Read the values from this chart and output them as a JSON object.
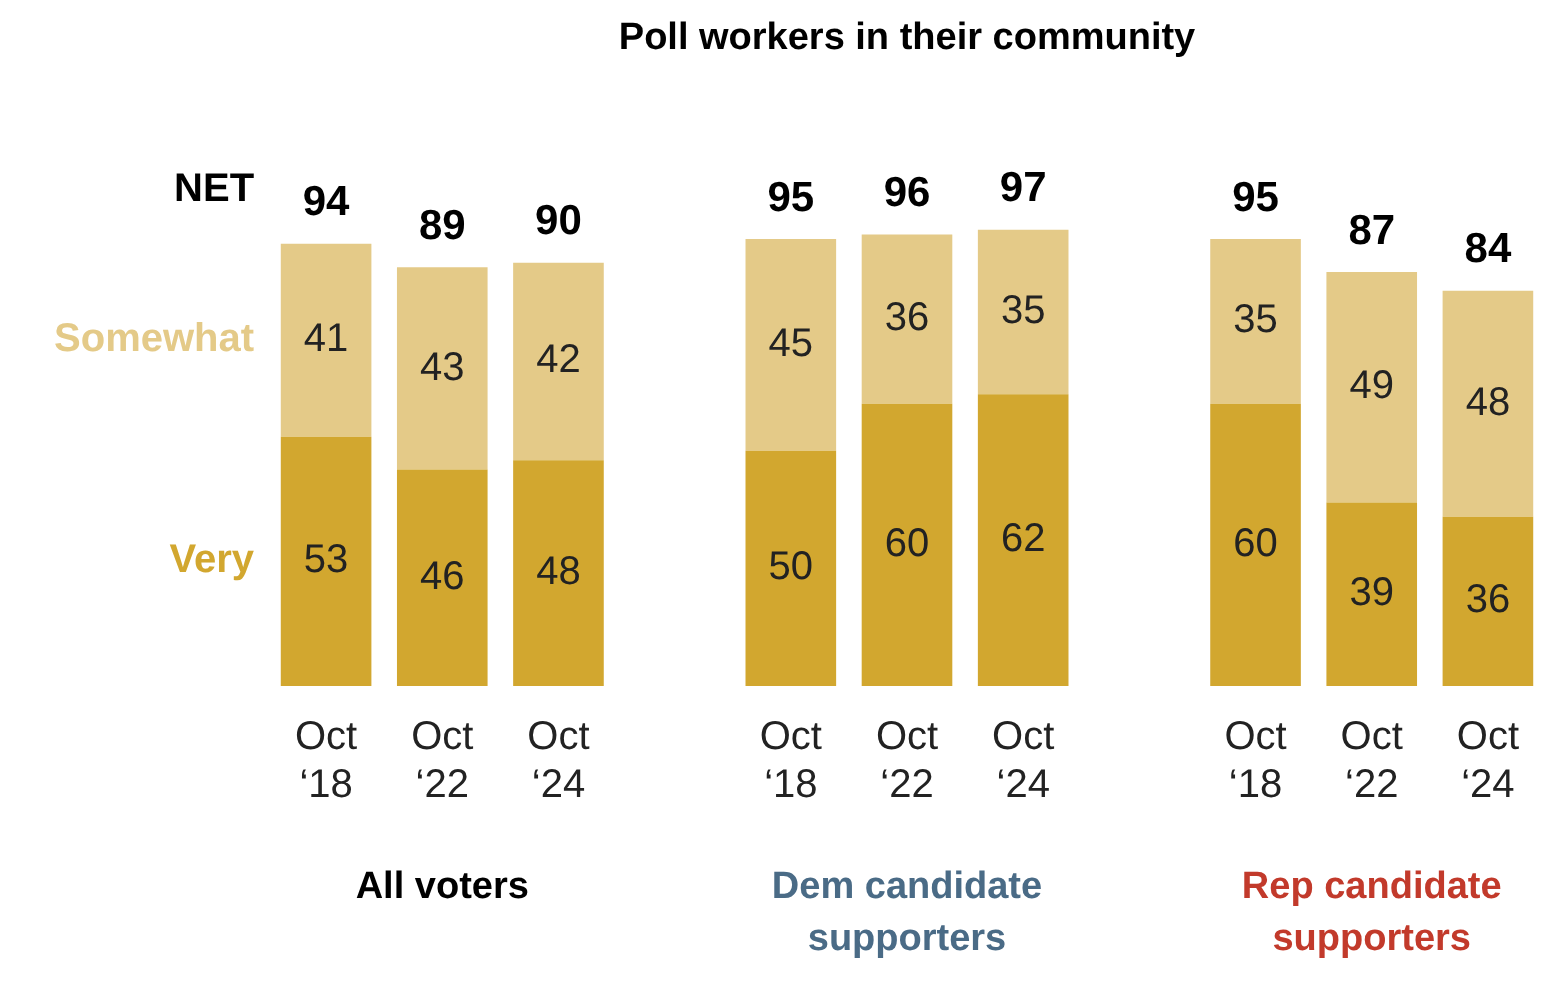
{
  "chart_data": {
    "type": "bar",
    "title": "Poll workers in their community",
    "stacked": true,
    "data_labels": true,
    "legend": "left",
    "tick_labels": "x",
    "grid": false,
    "categories": [
      "Oct ‘18",
      "Oct ‘22",
      "Oct ‘24",
      null,
      "Oct ‘18",
      "Oct ‘22",
      "Oct ‘24",
      null,
      "Oct ‘18",
      "Oct ‘22",
      "Oct ‘24"
    ],
    "series": [
      {
        "name": "Very",
        "color": "#d2a72f",
        "values": [
          53,
          46,
          48,
          null,
          50,
          60,
          62,
          null,
          60,
          39,
          36
        ]
      },
      {
        "name": "Somewhat",
        "color": "#e4ca88",
        "values": [
          41,
          43,
          42,
          null,
          45,
          36,
          35,
          null,
          35,
          49,
          48
        ]
      }
    ],
    "totals": [
      "94",
      "89",
      "90",
      null,
      "95",
      "96",
      "97",
      null,
      "95",
      "87",
      "84"
    ],
    "annotations": [
      "NET",
      "All voters",
      "Dem candidate supporters",
      "Rep candidate supporters"
    ]
  }
}
